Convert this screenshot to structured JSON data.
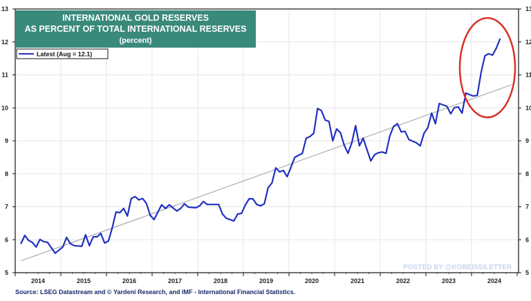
{
  "chart_data": {
    "type": "line",
    "title": [
      "INTERNATIONAL GOLD RESERVES",
      "AS PERCENT OF TOTAL INTERNATIONAL RESERVES",
      "(percent)"
    ],
    "legend": {
      "label": "Latest (Aug = 12.1)",
      "placement": "top-left"
    },
    "ylim": [
      5,
      13
    ],
    "yticks": [
      5,
      6,
      7,
      8,
      9,
      10,
      11,
      12,
      13
    ],
    "xlim": [
      "2014-01",
      "2024-12"
    ],
    "xticks": [
      "2014",
      "2015",
      "2016",
      "2017",
      "2018",
      "2019",
      "2020",
      "2021",
      "2022",
      "2023",
      "2024"
    ],
    "grid": true,
    "y_axis_both_sides": true,
    "series_color": "#1f2fbf",
    "trend_color": "#999999",
    "annotation_color": "#d9302a",
    "series": [
      {
        "name": "Latest (Aug = 12.1)",
        "points": [
          [
            "2014-02",
            5.88
          ],
          [
            "2014-03",
            6.13
          ],
          [
            "2014-04",
            5.98
          ],
          [
            "2014-05",
            5.92
          ],
          [
            "2014-06",
            5.78
          ],
          [
            "2014-07",
            6.01
          ],
          [
            "2014-08",
            5.94
          ],
          [
            "2014-09",
            5.92
          ],
          [
            "2014-11",
            5.59
          ],
          [
            "2015-01",
            5.78
          ],
          [
            "2015-02",
            6.07
          ],
          [
            "2015-03",
            5.88
          ],
          [
            "2015-04",
            5.82
          ],
          [
            "2015-06",
            5.8
          ],
          [
            "2015-07",
            6.15
          ],
          [
            "2015-08",
            5.82
          ],
          [
            "2015-09",
            6.09
          ],
          [
            "2015-10",
            6.09
          ],
          [
            "2015-11",
            6.19
          ],
          [
            "2015-12",
            5.9
          ],
          [
            "2016-01",
            5.96
          ],
          [
            "2016-02",
            6.36
          ],
          [
            "2016-03",
            6.84
          ],
          [
            "2016-04",
            6.82
          ],
          [
            "2016-05",
            6.95
          ],
          [
            "2016-06",
            6.72
          ],
          [
            "2016-07",
            7.25
          ],
          [
            "2016-08",
            7.31
          ],
          [
            "2016-09",
            7.21
          ],
          [
            "2016-10",
            7.25
          ],
          [
            "2016-11",
            7.1
          ],
          [
            "2016-12",
            6.74
          ],
          [
            "2017-01",
            6.61
          ],
          [
            "2017-03",
            7.06
          ],
          [
            "2017-04",
            6.95
          ],
          [
            "2017-05",
            7.06
          ],
          [
            "2017-07",
            6.87
          ],
          [
            "2017-08",
            6.95
          ],
          [
            "2017-09",
            7.09
          ],
          [
            "2017-10",
            6.99
          ],
          [
            "2017-12",
            6.97
          ],
          [
            "2018-01",
            7.03
          ],
          [
            "2018-02",
            7.16
          ],
          [
            "2018-03",
            7.07
          ],
          [
            "2018-06",
            7.07
          ],
          [
            "2018-07",
            6.78
          ],
          [
            "2018-08",
            6.65
          ],
          [
            "2018-10",
            6.57
          ],
          [
            "2018-11",
            6.78
          ],
          [
            "2018-12",
            6.8
          ],
          [
            "2019-01",
            7.05
          ],
          [
            "2019-02",
            7.24
          ],
          [
            "2019-03",
            7.24
          ],
          [
            "2019-04",
            7.07
          ],
          [
            "2019-05",
            7.03
          ],
          [
            "2019-06",
            7.09
          ],
          [
            "2019-07",
            7.58
          ],
          [
            "2019-08",
            7.72
          ],
          [
            "2019-09",
            8.18
          ],
          [
            "2019-10",
            8.06
          ],
          [
            "2019-11",
            8.1
          ],
          [
            "2019-12",
            7.91
          ],
          [
            "2020-01",
            8.2
          ],
          [
            "2020-02",
            8.5
          ],
          [
            "2020-04",
            8.62
          ],
          [
            "2020-05",
            9.08
          ],
          [
            "2020-06",
            9.13
          ],
          [
            "2020-07",
            9.23
          ],
          [
            "2020-08",
            9.98
          ],
          [
            "2020-09",
            9.92
          ],
          [
            "2020-10",
            9.63
          ],
          [
            "2020-11",
            9.59
          ],
          [
            "2020-12",
            9.0
          ],
          [
            "2021-01",
            9.36
          ],
          [
            "2021-02",
            9.25
          ],
          [
            "2021-03",
            8.87
          ],
          [
            "2021-04",
            8.62
          ],
          [
            "2021-05",
            8.94
          ],
          [
            "2021-06",
            9.46
          ],
          [
            "2021-07",
            8.85
          ],
          [
            "2021-08",
            9.08
          ],
          [
            "2021-09",
            8.73
          ],
          [
            "2021-10",
            8.39
          ],
          [
            "2021-11",
            8.58
          ],
          [
            "2021-12",
            8.64
          ],
          [
            "2022-01",
            8.66
          ],
          [
            "2022-02",
            8.62
          ],
          [
            "2022-03",
            9.15
          ],
          [
            "2022-04",
            9.44
          ],
          [
            "2022-05",
            9.52
          ],
          [
            "2022-06",
            9.27
          ],
          [
            "2022-07",
            9.29
          ],
          [
            "2022-08",
            9.04
          ],
          [
            "2022-10",
            8.94
          ],
          [
            "2022-11",
            8.85
          ],
          [
            "2022-12",
            9.23
          ],
          [
            "2023-01",
            9.4
          ],
          [
            "2023-02",
            9.84
          ],
          [
            "2023-03",
            9.52
          ],
          [
            "2023-04",
            10.13
          ],
          [
            "2023-06",
            10.05
          ],
          [
            "2023-07",
            9.82
          ],
          [
            "2023-08",
            10.01
          ],
          [
            "2023-09",
            10.03
          ],
          [
            "2023-10",
            9.84
          ],
          [
            "2023-11",
            10.45
          ],
          [
            "2023-12",
            10.4
          ],
          [
            "2024-01",
            10.36
          ],
          [
            "2024-02",
            10.38
          ],
          [
            "2024-03",
            11.07
          ],
          [
            "2024-04",
            11.58
          ],
          [
            "2024-05",
            11.64
          ],
          [
            "2024-06",
            11.6
          ],
          [
            "2024-07",
            11.81
          ],
          [
            "2024-08",
            12.1
          ]
        ]
      }
    ],
    "trendline": {
      "start": [
        "2014-02",
        5.36
      ],
      "end": [
        "2024-11",
        10.7
      ]
    }
  },
  "source": "Source: LSEG Datastream and © Yardeni Research, and IMF - International Financial Statistics.",
  "watermark": "POSTED BY @KOBEISSILETTER"
}
